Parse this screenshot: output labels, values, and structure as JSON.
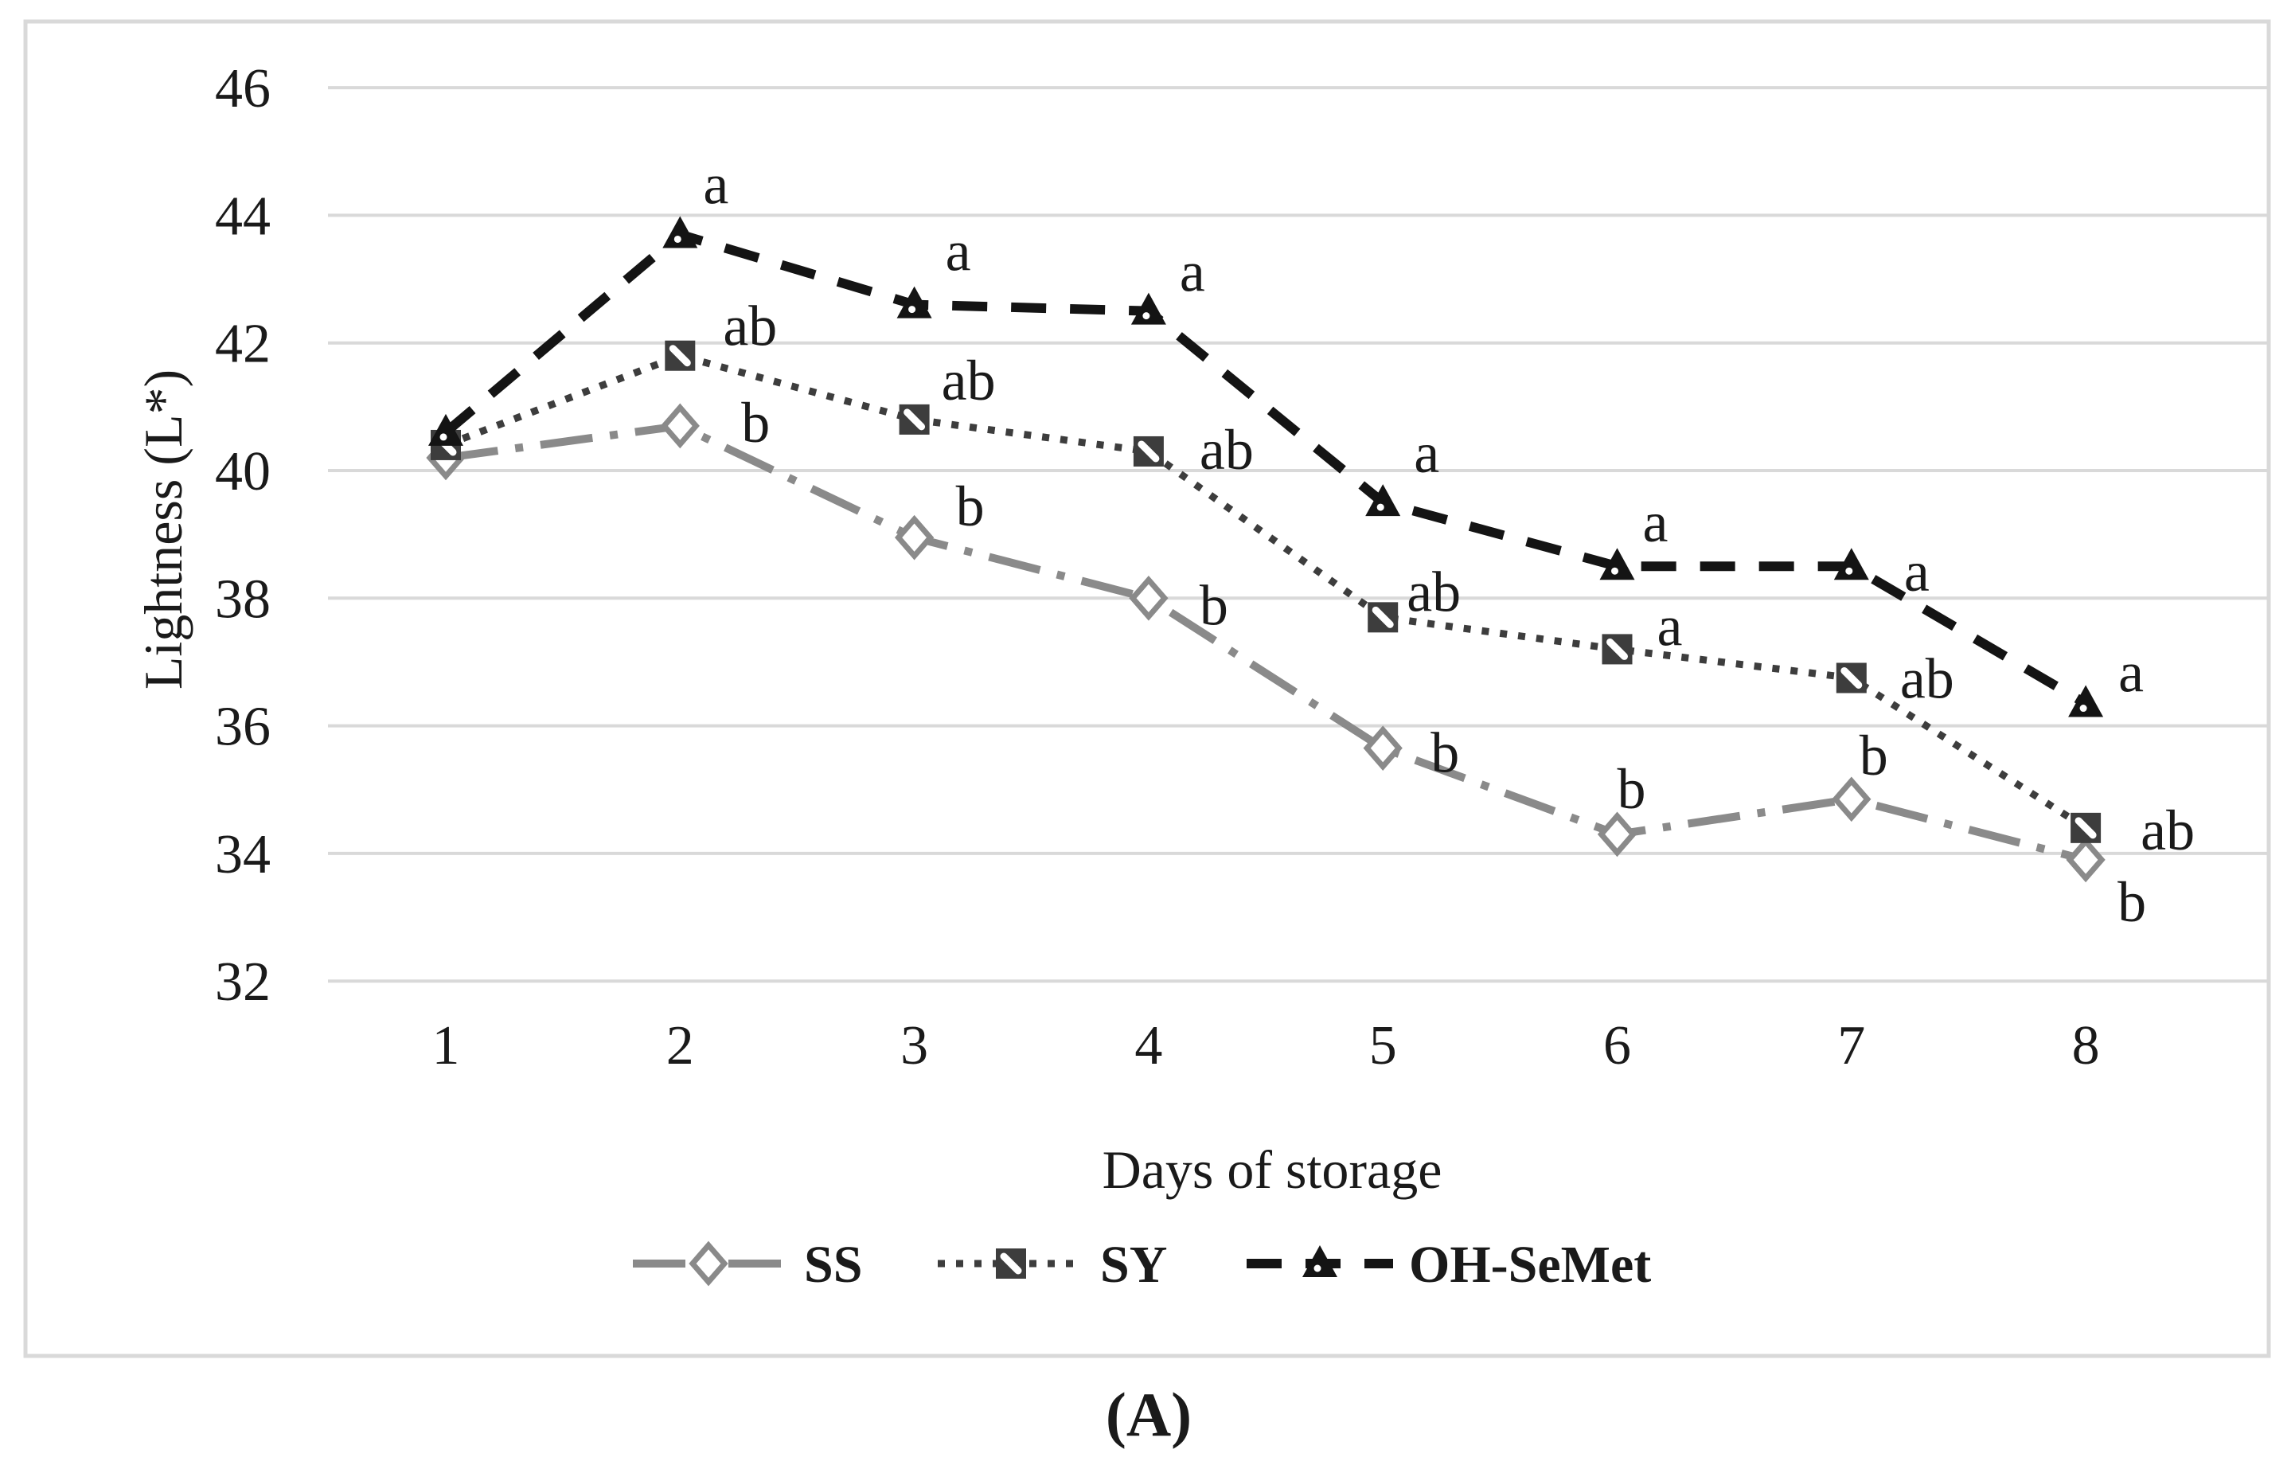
{
  "figure": {
    "caption": "(A)"
  },
  "chart_data": {
    "type": "line",
    "title": "",
    "xlabel": "Days of storage",
    "ylabel": "Lightness (L*)",
    "x": [
      1,
      2,
      3,
      4,
      5,
      6,
      7,
      8
    ],
    "ylim": [
      32,
      46
    ],
    "yticks": [
      46,
      44,
      42,
      40,
      38,
      36,
      34,
      32
    ],
    "grid": "horizontal",
    "grid_color": "#d9d9d9",
    "legend_position": "bottom",
    "series": [
      {
        "name": "SS",
        "color": "#8a8a8a",
        "line_style": "dash-dot",
        "marker": "open-diamond",
        "values": [
          40.2,
          40.7,
          38.95,
          38.0,
          35.65,
          34.3,
          34.85,
          33.9
        ],
        "labels": [
          "",
          "b",
          "b",
          "b",
          "b",
          "b",
          "b",
          "b"
        ],
        "label_offsets": [
          [
            0,
            0
          ],
          [
            95,
            -5
          ],
          [
            70,
            -40
          ],
          [
            82,
            8
          ],
          [
            78,
            5
          ],
          [
            18,
            -58
          ],
          [
            28,
            -56
          ],
          [
            58,
            52
          ]
        ]
      },
      {
        "name": "SY",
        "color": "#3d3d3d",
        "line_style": "dotted",
        "marker": "hatched-square",
        "values": [
          40.4,
          41.8,
          40.8,
          40.3,
          37.7,
          37.2,
          36.75,
          34.4
        ],
        "labels": [
          "",
          "ab",
          "ab",
          "ab",
          "ab",
          "a",
          "ab",
          "ab"
        ],
        "label_offsets": [
          [
            0,
            0
          ],
          [
            88,
            -38
          ],
          [
            68,
            -50
          ],
          [
            98,
            -3
          ],
          [
            64,
            -33
          ],
          [
            66,
            -30
          ],
          [
            95,
            0
          ],
          [
            103,
            2
          ]
        ]
      },
      {
        "name": "OH-SeMet",
        "color": "#141414",
        "line_style": "dashed",
        "marker": "filled-triangle",
        "values": [
          40.6,
          43.7,
          42.6,
          42.5,
          39.5,
          38.5,
          38.5,
          36.35
        ],
        "labels": [
          "",
          "a",
          "a",
          "a",
          "a",
          "a",
          "a",
          "a"
        ],
        "label_offsets": [
          [
            0,
            0
          ],
          [
            45,
            -64
          ],
          [
            55,
            -68
          ],
          [
            55,
            -50
          ],
          [
            55,
            -63
          ],
          [
            48,
            -56
          ],
          [
            82,
            6
          ],
          [
            57,
            -40
          ]
        ]
      }
    ]
  }
}
